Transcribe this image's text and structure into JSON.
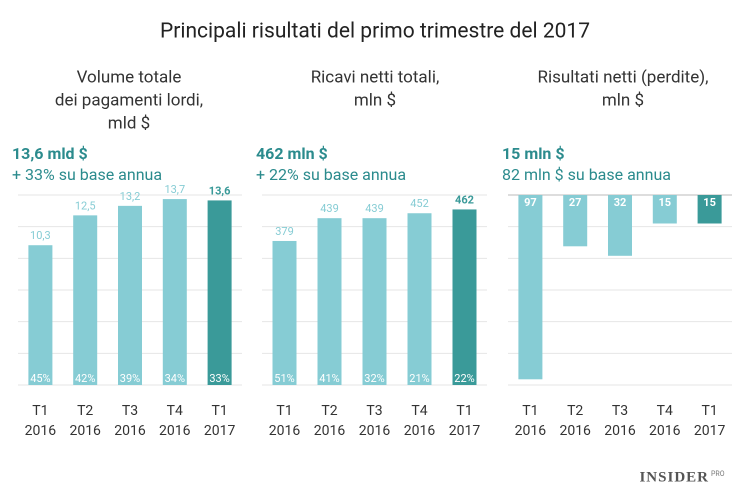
{
  "title": "Principali risultati del primo trimestre del 2017",
  "logo": {
    "text": "INSIDER",
    "sup": "PRO"
  },
  "chart_data": [
    {
      "type": "bar",
      "title": [
        "Volume totale",
        "dei pagamenti lordi,",
        "mld $"
      ],
      "headline": "13,6 mld $",
      "subline": "+ 33% su base annua",
      "categories": [
        "T1 2016",
        "T2 2016",
        "T3 2016",
        "T4 2016",
        "T1 2017"
      ],
      "values": [
        10.3,
        12.5,
        13.2,
        13.7,
        13.6
      ],
      "value_labels": [
        "10,3",
        "12,5",
        "13,2",
        "13,7",
        "13,6"
      ],
      "bottom_labels": [
        "45%",
        "42%",
        "39%",
        "34%",
        "33%"
      ],
      "colors": [
        "#86ccd4",
        "#86ccd4",
        "#86ccd4",
        "#86ccd4",
        "#3a9a99"
      ],
      "ylim": [
        0,
        14
      ],
      "inverted": false
    },
    {
      "type": "bar",
      "title": [
        "Ricavi netti totali,",
        "mln $"
      ],
      "headline": "462 mln $",
      "subline": "+ 22% su base annua",
      "categories": [
        "T1 2016",
        "T2 2016",
        "T3 2016",
        "T4 2016",
        "T1 2017"
      ],
      "values": [
        379,
        439,
        439,
        452,
        462
      ],
      "bottom_labels": [
        "51%",
        "41%",
        "32%",
        "21%",
        "22%"
      ],
      "colors": [
        "#86ccd4",
        "#86ccd4",
        "#86ccd4",
        "#86ccd4",
        "#3a9a99"
      ],
      "ylim": [
        0,
        500
      ],
      "inverted": false
    },
    {
      "type": "bar",
      "title": [
        "Risultati netti (perdite),",
        "mln $"
      ],
      "headline": "15 mln $",
      "subline": "82 mln $ su base annua",
      "categories": [
        "T1 2016",
        "T2 2016",
        "T3 2016",
        "T4 2016",
        "T1 2017"
      ],
      "values": [
        97,
        27,
        32,
        15,
        15
      ],
      "colors": [
        "#86ccd4",
        "#86ccd4",
        "#86ccd4",
        "#86ccd4",
        "#3a9a99"
      ],
      "ylim": [
        0,
        100
      ],
      "inverted": true
    }
  ]
}
